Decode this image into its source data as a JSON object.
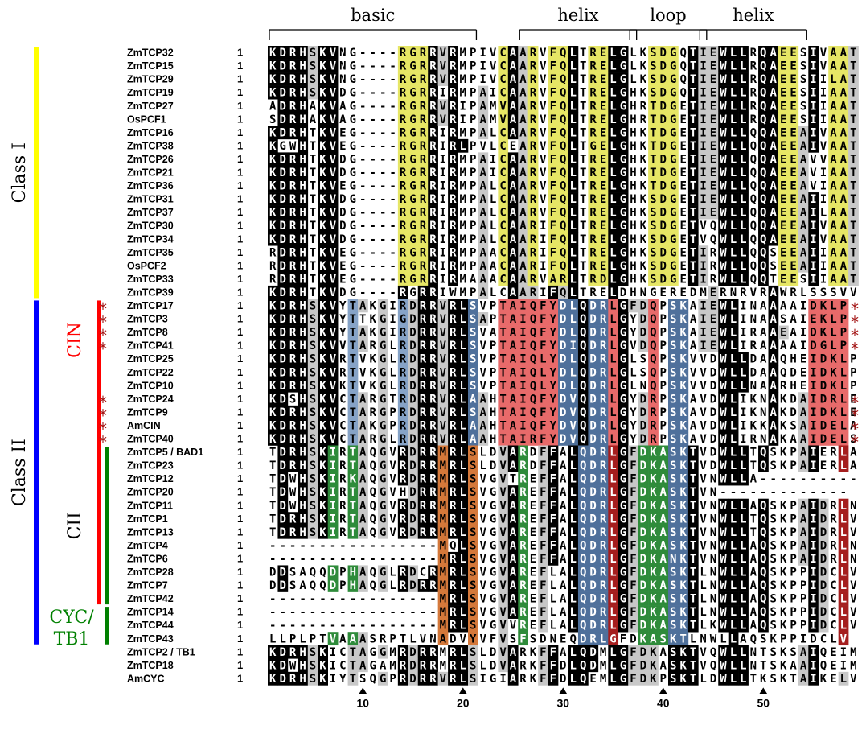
{
  "regions": [
    {
      "label": "basic",
      "from": 1,
      "to": 21
    },
    {
      "label": "helix",
      "from": 26,
      "to": 37
    },
    {
      "label": "loop",
      "from": 37,
      "to": 44
    },
    {
      "label": "helix",
      "from": 44,
      "to": 54
    }
  ],
  "classes": [
    {
      "label": "Class I",
      "color": "#ffff00",
      "from": 0,
      "to": 18
    },
    {
      "label": "Class II",
      "color": "#0000ff",
      "from": 19,
      "to": 44
    }
  ],
  "subclasses": [
    {
      "label": "CIN",
      "color": "#ff0000",
      "from": 19,
      "to": 41
    },
    {
      "label": "CII",
      "color": "#008000",
      "from": 30,
      "to": 41
    },
    {
      "label": "CYC/\nTB1",
      "color": "#008000",
      "from": 42,
      "to": 44
    }
  ],
  "colors": {
    "black": "#000000",
    "grey": "#c8c8c8",
    "yellow": "#e6e665",
    "red": "#e86a6a",
    "darkred": "#a51e1e",
    "blue": "#86a3c7",
    "darkblue": "#4f709b",
    "green": "#2e8b3a",
    "orange": "#d4783a",
    "purple": "#9b86c0"
  },
  "sequences": [
    {
      "name": "ZmTCP32",
      "start": "1",
      "seq": "KDRHSKVNG----RGRRVRMPIVCAARVFQLTRELGLKSDGQTIEWLLRQAEESIVAAT",
      "star": false
    },
    {
      "name": "ZmTCP15",
      "start": "1",
      "seq": "KDRHSKVNG----RGRRVRMPIVCAARVFQLTRELGLKSDGQTIEWLLRQAEESIVAAT",
      "star": false
    },
    {
      "name": "ZmTCP29",
      "start": "1",
      "seq": "KDRHSKVNG----RGRRVRMPIVCAARVFQLTRELGLKSDGQTIEWLLRQAEESIILAT",
      "star": false
    },
    {
      "name": "ZmTCP19",
      "start": "1",
      "seq": "KDRHSKVDG----RGRRIRMPAICAARVFQLTRELGHKSDGQTIEWLLRQAEESIIAAT",
      "star": false
    },
    {
      "name": "ZmTCP27",
      "start": "1",
      "seq": "ADRHAKVAG----RGRRVRIPAMVAARVFQLTRELGHRTDGETIEWLLRQAEESIIAAT",
      "star": false
    },
    {
      "name": "OsPCF1",
      "start": "1",
      "seq": "SDRHAKVAG----RGRRVRIPAMVAARVFQLTRELGHRTDGETIEWLLRQAEESIIAAT",
      "star": false
    },
    {
      "name": "ZmTCP16",
      "start": "1",
      "seq": "KDRHTKVEG----RGRRIRMPALCAARVFQLTRELGHKTDGETIEWLLQQAEEAIVAAT",
      "star": false
    },
    {
      "name": "ZmTCP38",
      "start": "1",
      "seq": "KGWHTKVEG----RGRRIRLPVLCEARVFQLTGELGHKTDGETIEWLLQQAEEAIVAAT",
      "star": false
    },
    {
      "name": "ZmTCP26",
      "start": "1",
      "seq": "KDRHTKVDG----RGRRIRMPAICAARVFQLTRELGHKTDGETIEWLLQQAEEAVVAAT",
      "star": false
    },
    {
      "name": "ZmTCP21",
      "start": "1",
      "seq": "KDRHTKVDG----RGRRIRMPAICAARVFQLTRELGHKTDGETIEWLLQQAEEAVIAAT",
      "star": false
    },
    {
      "name": "ZmTCP36",
      "start": "1",
      "seq": "KDRHTKVEG----RGRRIRMPALCAARVFQLTRELGHKTDGETIEWLLQQAEEAVIAAT",
      "star": false
    },
    {
      "name": "ZmTCP31",
      "start": "1",
      "seq": "KDRHTKVDG----RGRRIRMPALCAARVFQLTRELGHKSDGETIEWLLQQAEEAIIAAT",
      "star": false
    },
    {
      "name": "ZmTCP37",
      "start": "1",
      "seq": "KDRHTKVDG----RGRRIRMPALCAARVFQLTRELGHKSDGETIEWLLQQAEEAILAAT",
      "star": false
    },
    {
      "name": "ZmTCP30",
      "start": "1",
      "seq": "KDRHTKVDG----RGRRIRMPALCAARIFQLTRELGHKSDGETVQWLLQQAEEAIVAAT",
      "star": false
    },
    {
      "name": "ZmTCP34",
      "start": "1",
      "seq": "KDRHTKVDG----RGRRIRMPALCAARIFQLTRELGHKSDGETVQWLLQQAEEAIVAAT",
      "star": false
    },
    {
      "name": "ZmTCP35",
      "start": "1",
      "seq": "RDRHTKVEG----RGRRIRMPAACAARIFQLTRELGHKSDGETIRWLLQQSEEAIIAAT",
      "star": false
    },
    {
      "name": "OsPCF2",
      "start": "1",
      "seq": "RDRHTKVEG----RGRRIRMPAACAARIFQLTRELGHKSDGETIRWLLQQSEEAIIAAT",
      "star": false
    },
    {
      "name": "ZmTCP33",
      "start": "1",
      "seq": "RDRHTKVEG----RGRRIRMAAACAARVARLTRDLGHKSDGETIRWLLQQTEESIIAAT",
      "star": false
    },
    {
      "name": "ZmTCP39",
      "start": "1",
      "seq": "KDRHTKVDG----RGRRIWMPALCAARIFQLTRELDHNGEREDMERNRVRAWRLSSSVV",
      "star": false
    },
    {
      "name": "ZmTCP17",
      "start": "1",
      "seq": "KDRHSKVYTAKGIRDRRVRLSVPTAIQFYDLQDRLGFDQPSKAIEWLINAAAAIDKLP",
      "star": true
    },
    {
      "name": "ZmTCP3",
      "start": "1",
      "seq": "KDRHSKVYTTKGIGDRRVRLSAPTAIQFYDLQDRLGYDQPSKAIEWLINAASAIEKLP",
      "star": true
    },
    {
      "name": "ZmTCP8",
      "start": "1",
      "seq": "KDRHSKVYTAKGIRDRRVRLSVATAIQFYDLQDRLGYDQPSKAIEWLIRAAEAIDKLP",
      "star": true
    },
    {
      "name": "ZmTCP41",
      "start": "1",
      "seq": "KDRHSKVVTARGLRDRRVRLSVPTAIQFYDIQDRLGVDQPSKAIEWLIRAAAAIDGLP",
      "star": true
    },
    {
      "name": "ZmTCP25",
      "start": "1",
      "seq": "KDRHSKVRTVKGLRDRRVRLSVPTAIQLYDLQDRLGLSQPSKVVDWLLDAAQHEIDKLP",
      "star": false
    },
    {
      "name": "ZmTCP22",
      "start": "1",
      "seq": "KDRHSKVRTVKGLRDRRVRLSVPTAIQLYDLQDRLGLSQPSKVVDWLLDAAQDEIDKLP",
      "star": false
    },
    {
      "name": "ZmTCP10",
      "start": "1",
      "seq": "KDRHSKVKTVKGLRDRRVRLSVPTAIQLYDLQDRLGLNQPSKVVDWLLNAARHEIDKLP",
      "star": false
    },
    {
      "name": "ZmTCP24",
      "start": "1",
      "seq": "KDSHSKVCTARGTRDRRVRLAAHTAIQFYDVQDRLGYDRPSKAVDWLIKNAKDAIDRLE",
      "star": true
    },
    {
      "name": "ZmTCP9",
      "start": "1",
      "seq": "KDRHSKVCTARGPRDRRVRLSAHTAIQFYDVQDRLGYDRPSKAVDWLIKNAKDAIDKLE",
      "star": true
    },
    {
      "name": "AmCIN",
      "start": "1",
      "seq": "KDRHSKVCTAKGPRDRRVRLAAHTAIQFYDVQDRLGYDRPSKAVDWLIKKAKSAIDELA",
      "star": true
    },
    {
      "name": "ZmTCP40",
      "start": "1",
      "seq": "KDRHSKVCTARGLRDRRVRLAAHTAIRFYDVQDRLGYDRPSKAVDWLIRNAKAAIDELS",
      "star": true
    },
    {
      "name": "ZmTCP5 / BAD1",
      "start": "1",
      "seq": "TDRHSKIRTAQGVRDRRMRLSLDVARDFFALQDRLGFDKASKTVDWLLTQSKPAIERLA",
      "star": false
    },
    {
      "name": "ZmTCP23",
      "start": "1",
      "seq": "TDRHSKIRTAQGVRDRRMRLSLDVARDFFALQDRLGFDKASKTVDWLLTQSKPAIERLA",
      "star": false
    },
    {
      "name": "ZmTCP12",
      "start": "1",
      "seq": "TDWHSKIRKAQGVRDRRMRLSVGVTREFFALQDRLGFDKASKTVNWLLA----------",
      "star": false
    },
    {
      "name": "ZmTCP20",
      "start": "1",
      "seq": "TDWHSKIRTAQGVHDRRMRLSVGVAREFFALQDRLGFDKASKTVN-------------",
      "star": false
    },
    {
      "name": "ZmTCP11",
      "start": "1",
      "seq": "TDWHSKIRTAQGVRDRRMRLSVGVAREFFALQDRLGFDKASKTVNWLLAQSKPAIDRLN",
      "star": false
    },
    {
      "name": "ZmTCP1",
      "start": "1",
      "seq": "TDRHSKIRTAQGVRDRRMRLSVGVAREFFALQDRLGFDKASKTVNWLLTQSKPAIDRLV",
      "star": false
    },
    {
      "name": "ZmTCP13",
      "start": "1",
      "seq": "TDRHSKIRTAQGVRDRRMRLSVGVAREFFALQDRLGFDKASKTVNWLLTQSKPAIDRLV",
      "star": false
    },
    {
      "name": "ZmTCP4",
      "start": "1",
      "seq": "-----------------MQLSVGVAREFFALQDRLGFDKASKTVNWLLAQSKPAIDRLN",
      "star": false
    },
    {
      "name": "ZmTCP6",
      "start": "1",
      "seq": "-----------------MRLSVGVAREFFALQDRLGFDKANKTVNWLLAQSKPAIDRLN",
      "star": false
    },
    {
      "name": "ZmTCP28",
      "start": "1",
      "seq": "DDSAQQDPHAQGLRDCRMRLSVGVAREFLALQDRLGFDKASKTLNWLLAQSKPPIDCLV",
      "star": false
    },
    {
      "name": "ZmTCP7",
      "start": "1",
      "seq": "DDSAQQDPHAQGLRDRRMRLSVGVAREFLALQDRLGFDKASKTLNWLLAQSKPPIDCLV",
      "star": false
    },
    {
      "name": "ZmTCP42",
      "start": "1",
      "seq": "-----------------MRLSVGVAREFLALQDRLGFDKASKTLNWLLAQSKPPIDCLV",
      "star": false
    },
    {
      "name": "ZmTCP14",
      "start": "1",
      "seq": "-----------------MRLSVGVAREFLALQDRLGFDKASKTLNWLLAQSKPPIDCLV",
      "star": false
    },
    {
      "name": "ZmTCP44",
      "start": "1",
      "seq": "-----------------MRLSVGVVREFLALQDRLGFDKASKTLKWLLAQSKPPIDCLV",
      "star": false
    },
    {
      "name": "ZmTCP43",
      "start": "1",
      "seq": "LLPLPTVAAASRPTLVNADVYVFVSFSDNEQDRLGFDKASKTLNWLLAQSKPPIDCLV",
      "star": false
    },
    {
      "name": "ZmTCP2 / TB1",
      "start": "1",
      "seq": "KDRHSKICTAGGMRDRRMRLSLDVARKFFALQDMLGFDKASKTVQWLLNTSKSAIQEIM",
      "star": false
    },
    {
      "name": "ZmTCP18",
      "start": "1",
      "seq": "KDWHSKICTAGAMRDRRMRLSLDVARKFFDLQDMLGFDKASKTVQWLLNTSKAAIQEIM",
      "star": false
    },
    {
      "name": "AmCYC",
      "start": "1",
      "seq": "KDRHSKIYTSQGPRDRRVRLSIGIARKFFDLQEMLGFDKPSKTLDWLLTKSKTAIKELV",
      "star": false
    }
  ],
  "positions": [
    "10",
    "20",
    "30",
    "40",
    "50"
  ]
}
